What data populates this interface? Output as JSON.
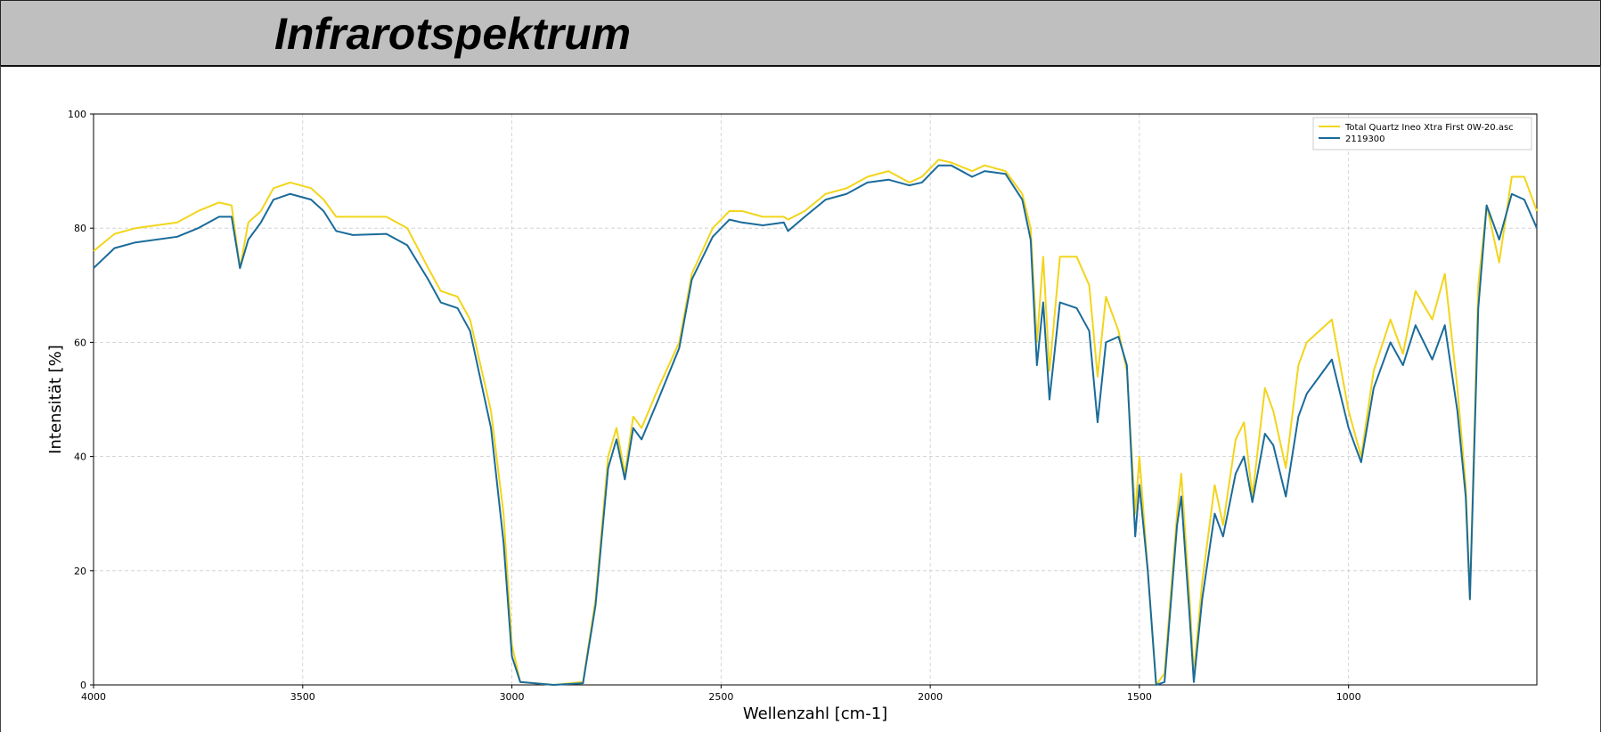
{
  "chart_data": {
    "type": "line",
    "title": "Infrarotspektrum",
    "xlabel": "Wellenzahl [cm-1]",
    "ylabel": "Intensität [%]",
    "x": [
      4000,
      3950,
      3900,
      3800,
      3750,
      3700,
      3670,
      3650,
      3630,
      3600,
      3570,
      3530,
      3480,
      3450,
      3420,
      3380,
      3300,
      3250,
      3200,
      3170,
      3130,
      3100,
      3050,
      3020,
      3000,
      2980,
      2900,
      2830,
      2800,
      2770,
      2750,
      2730,
      2710,
      2690,
      2650,
      2600,
      2570,
      2520,
      2480,
      2450,
      2400,
      2350,
      2340,
      2300,
      2250,
      2200,
      2150,
      2100,
      2050,
      2020,
      1980,
      1950,
      1900,
      1870,
      1820,
      1780,
      1760,
      1745,
      1730,
      1715,
      1690,
      1650,
      1620,
      1600,
      1580,
      1550,
      1530,
      1510,
      1500,
      1480,
      1460,
      1440,
      1410,
      1400,
      1380,
      1370,
      1350,
      1320,
      1300,
      1270,
      1250,
      1230,
      1200,
      1180,
      1150,
      1120,
      1100,
      1070,
      1040,
      1000,
      970,
      940,
      900,
      870,
      840,
      800,
      770,
      740,
      720,
      710,
      690,
      670,
      640,
      610,
      580,
      550
    ],
    "series": [
      {
        "name": "Total Quartz Ineo Xtra First 0W-20.asc",
        "color": "#f2d51c",
        "values": [
          76,
          79,
          80,
          81,
          83,
          84.5,
          84,
          73,
          81,
          83,
          87,
          88,
          87,
          85,
          82,
          82,
          82,
          80,
          73,
          69,
          68,
          64,
          48,
          30,
          7,
          0.5,
          0,
          0.5,
          15,
          40,
          45,
          37,
          47,
          45,
          52,
          60,
          72,
          80,
          83,
          83,
          82,
          82,
          81.5,
          83,
          86,
          87,
          89,
          90,
          88,
          89,
          92,
          91.5,
          90,
          91,
          90,
          86,
          80,
          60,
          75,
          55,
          75,
          75,
          70,
          54,
          68,
          62,
          55,
          30,
          40,
          20,
          0,
          2,
          30,
          37,
          15,
          2,
          18,
          35,
          28,
          43,
          46,
          33,
          52,
          48,
          38,
          56,
          60,
          62,
          64,
          48,
          40,
          55,
          64,
          58,
          69,
          64,
          72,
          52,
          35,
          15,
          70,
          84,
          74,
          89,
          89,
          83
        ]
      },
      {
        "name": "2119300",
        "color": "#1a6b9a",
        "values": [
          73,
          76.5,
          77.5,
          78.5,
          80,
          82,
          82,
          73,
          78,
          81,
          85,
          86,
          85,
          83,
          79.5,
          78.8,
          79,
          77,
          71,
          67,
          66,
          62,
          45,
          25,
          5,
          0.5,
          0,
          0.3,
          14,
          38,
          43,
          36,
          45,
          43,
          50,
          59,
          71,
          78.5,
          81.5,
          81,
          80.5,
          81,
          79.5,
          82,
          85,
          86,
          88,
          88.5,
          87.5,
          88,
          91,
          91,
          89,
          90,
          89.5,
          85,
          78,
          56,
          67,
          50,
          67,
          66,
          62,
          46,
          60,
          61,
          56,
          26,
          35,
          20,
          0,
          0.5,
          28,
          33,
          12,
          0.5,
          15,
          30,
          26,
          37,
          40,
          32,
          44,
          42,
          33,
          47,
          51,
          54,
          57,
          45,
          39,
          52,
          60,
          56,
          63,
          57,
          63,
          48,
          33,
          15,
          66,
          84,
          78,
          86,
          85,
          80
        ]
      }
    ],
    "xlim": [
      4000,
      550
    ],
    "ylim": [
      0,
      100
    ],
    "xticks": [
      4000,
      3500,
      3000,
      2500,
      2000,
      1500,
      1000
    ],
    "yticks": [
      0,
      20,
      40,
      60,
      80,
      100
    ],
    "grid": true,
    "legend": "upper right"
  }
}
